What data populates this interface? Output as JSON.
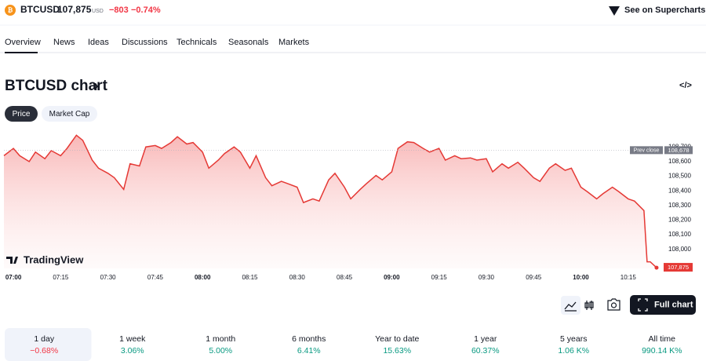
{
  "header": {
    "symbol": "BTCUSD",
    "price": "107,875",
    "currency": "USD",
    "change": "−803",
    "change_percent": "−0.74%",
    "supercharts": "See on Supercharts"
  },
  "tabs": [
    "Overview",
    "News",
    "Ideas",
    "Discussions",
    "Technicals",
    "Seasonals",
    "Markets"
  ],
  "section": {
    "title": "BTCUSD chart",
    "chevron": "›",
    "embed": "</>"
  },
  "buttons": [
    "Price",
    "Market Cap"
  ],
  "watermark": "TradingView",
  "full_chart": "Full chart",
  "chart_data": {
    "type": "area",
    "color": "#e53935",
    "x": [
      "06:57",
      "07:00",
      "07:02",
      "07:05",
      "07:07",
      "07:10",
      "07:12",
      "07:15",
      "07:17",
      "07:20",
      "07:22",
      "07:25",
      "07:27",
      "07:30",
      "07:32",
      "07:35",
      "07:37",
      "07:40",
      "07:42",
      "07:45",
      "07:47",
      "07:50",
      "07:52",
      "07:55",
      "07:57",
      "08:00",
      "08:02",
      "08:05",
      "08:07",
      "08:10",
      "08:12",
      "08:15",
      "08:17",
      "08:20",
      "08:22",
      "08:25",
      "08:27",
      "08:30",
      "08:32",
      "08:35",
      "08:37",
      "08:40",
      "08:42",
      "08:45",
      "08:47",
      "08:50",
      "08:52",
      "08:55",
      "08:57",
      "09:00",
      "09:02",
      "09:05",
      "09:07",
      "09:10",
      "09:12",
      "09:15",
      "09:17",
      "09:20",
      "09:22",
      "09:25",
      "09:27",
      "09:30",
      "09:32",
      "09:35",
      "09:37",
      "09:40",
      "09:42",
      "09:45",
      "09:47",
      "09:50",
      "09:52",
      "09:55",
      "09:57",
      "10:00",
      "10:02",
      "10:05",
      "10:07",
      "10:10",
      "10:12",
      "10:15",
      "10:17",
      "10:20",
      "10:21",
      "10:22",
      "10:24"
    ],
    "values": [
      108640,
      108690,
      108640,
      108600,
      108665,
      108620,
      108675,
      108640,
      108690,
      108780,
      108745,
      108610,
      108555,
      108520,
      108490,
      108410,
      108585,
      108570,
      108700,
      108710,
      108690,
      108730,
      108770,
      108720,
      108730,
      108665,
      108555,
      108610,
      108655,
      108700,
      108665,
      108555,
      108640,
      108490,
      108435,
      108465,
      108450,
      108425,
      108320,
      108345,
      108330,
      108475,
      108520,
      108425,
      108345,
      108410,
      108450,
      108505,
      108475,
      108530,
      108690,
      108735,
      108730,
      108690,
      108665,
      108690,
      108610,
      108640,
      108620,
      108625,
      108610,
      108620,
      108530,
      108585,
      108555,
      108595,
      108555,
      108490,
      108465,
      108555,
      108585,
      108540,
      108555,
      108425,
      108395,
      108345,
      108380,
      108425,
      108395,
      108345,
      108330,
      108265,
      107915,
      107915,
      107875
    ],
    "xlim": [
      "06:57",
      "10:26"
    ],
    "xticks": [
      "07:00",
      "07:15",
      "07:30",
      "07:45",
      "08:00",
      "08:15",
      "08:30",
      "08:45",
      "09:00",
      "09:15",
      "09:30",
      "09:45",
      "10:00",
      "10:15"
    ],
    "ylim": [
      107870,
      108830
    ],
    "yticks": [
      {
        "value": 108000,
        "label": "108,000"
      },
      {
        "value": 108100,
        "label": "108,100"
      },
      {
        "value": 108200,
        "label": "108,200"
      },
      {
        "value": 108300,
        "label": "108,300"
      },
      {
        "value": 108400,
        "label": "108,400"
      },
      {
        "value": 108500,
        "label": "108,500"
      },
      {
        "value": 108600,
        "label": "108,600"
      },
      {
        "value": 108700,
        "label": "108,700"
      }
    ],
    "prev_close": {
      "name": "Prev close",
      "value": 108678,
      "label": "108,678"
    },
    "last_price": {
      "value": 107875,
      "label": "107,875"
    }
  },
  "periods": [
    {
      "name": "1 day",
      "change": "−0.68%"
    },
    {
      "name": "1 week",
      "change": "3.06%"
    },
    {
      "name": "1 month",
      "change": "5.00%"
    },
    {
      "name": "6 months",
      "change": "6.41%"
    },
    {
      "name": "Year to date",
      "change": "15.63%"
    },
    {
      "name": "1 year",
      "change": "60.37%"
    },
    {
      "name": "5 years",
      "change": "1.06 K%"
    },
    {
      "name": "All time",
      "change": "990.14 K%"
    }
  ]
}
